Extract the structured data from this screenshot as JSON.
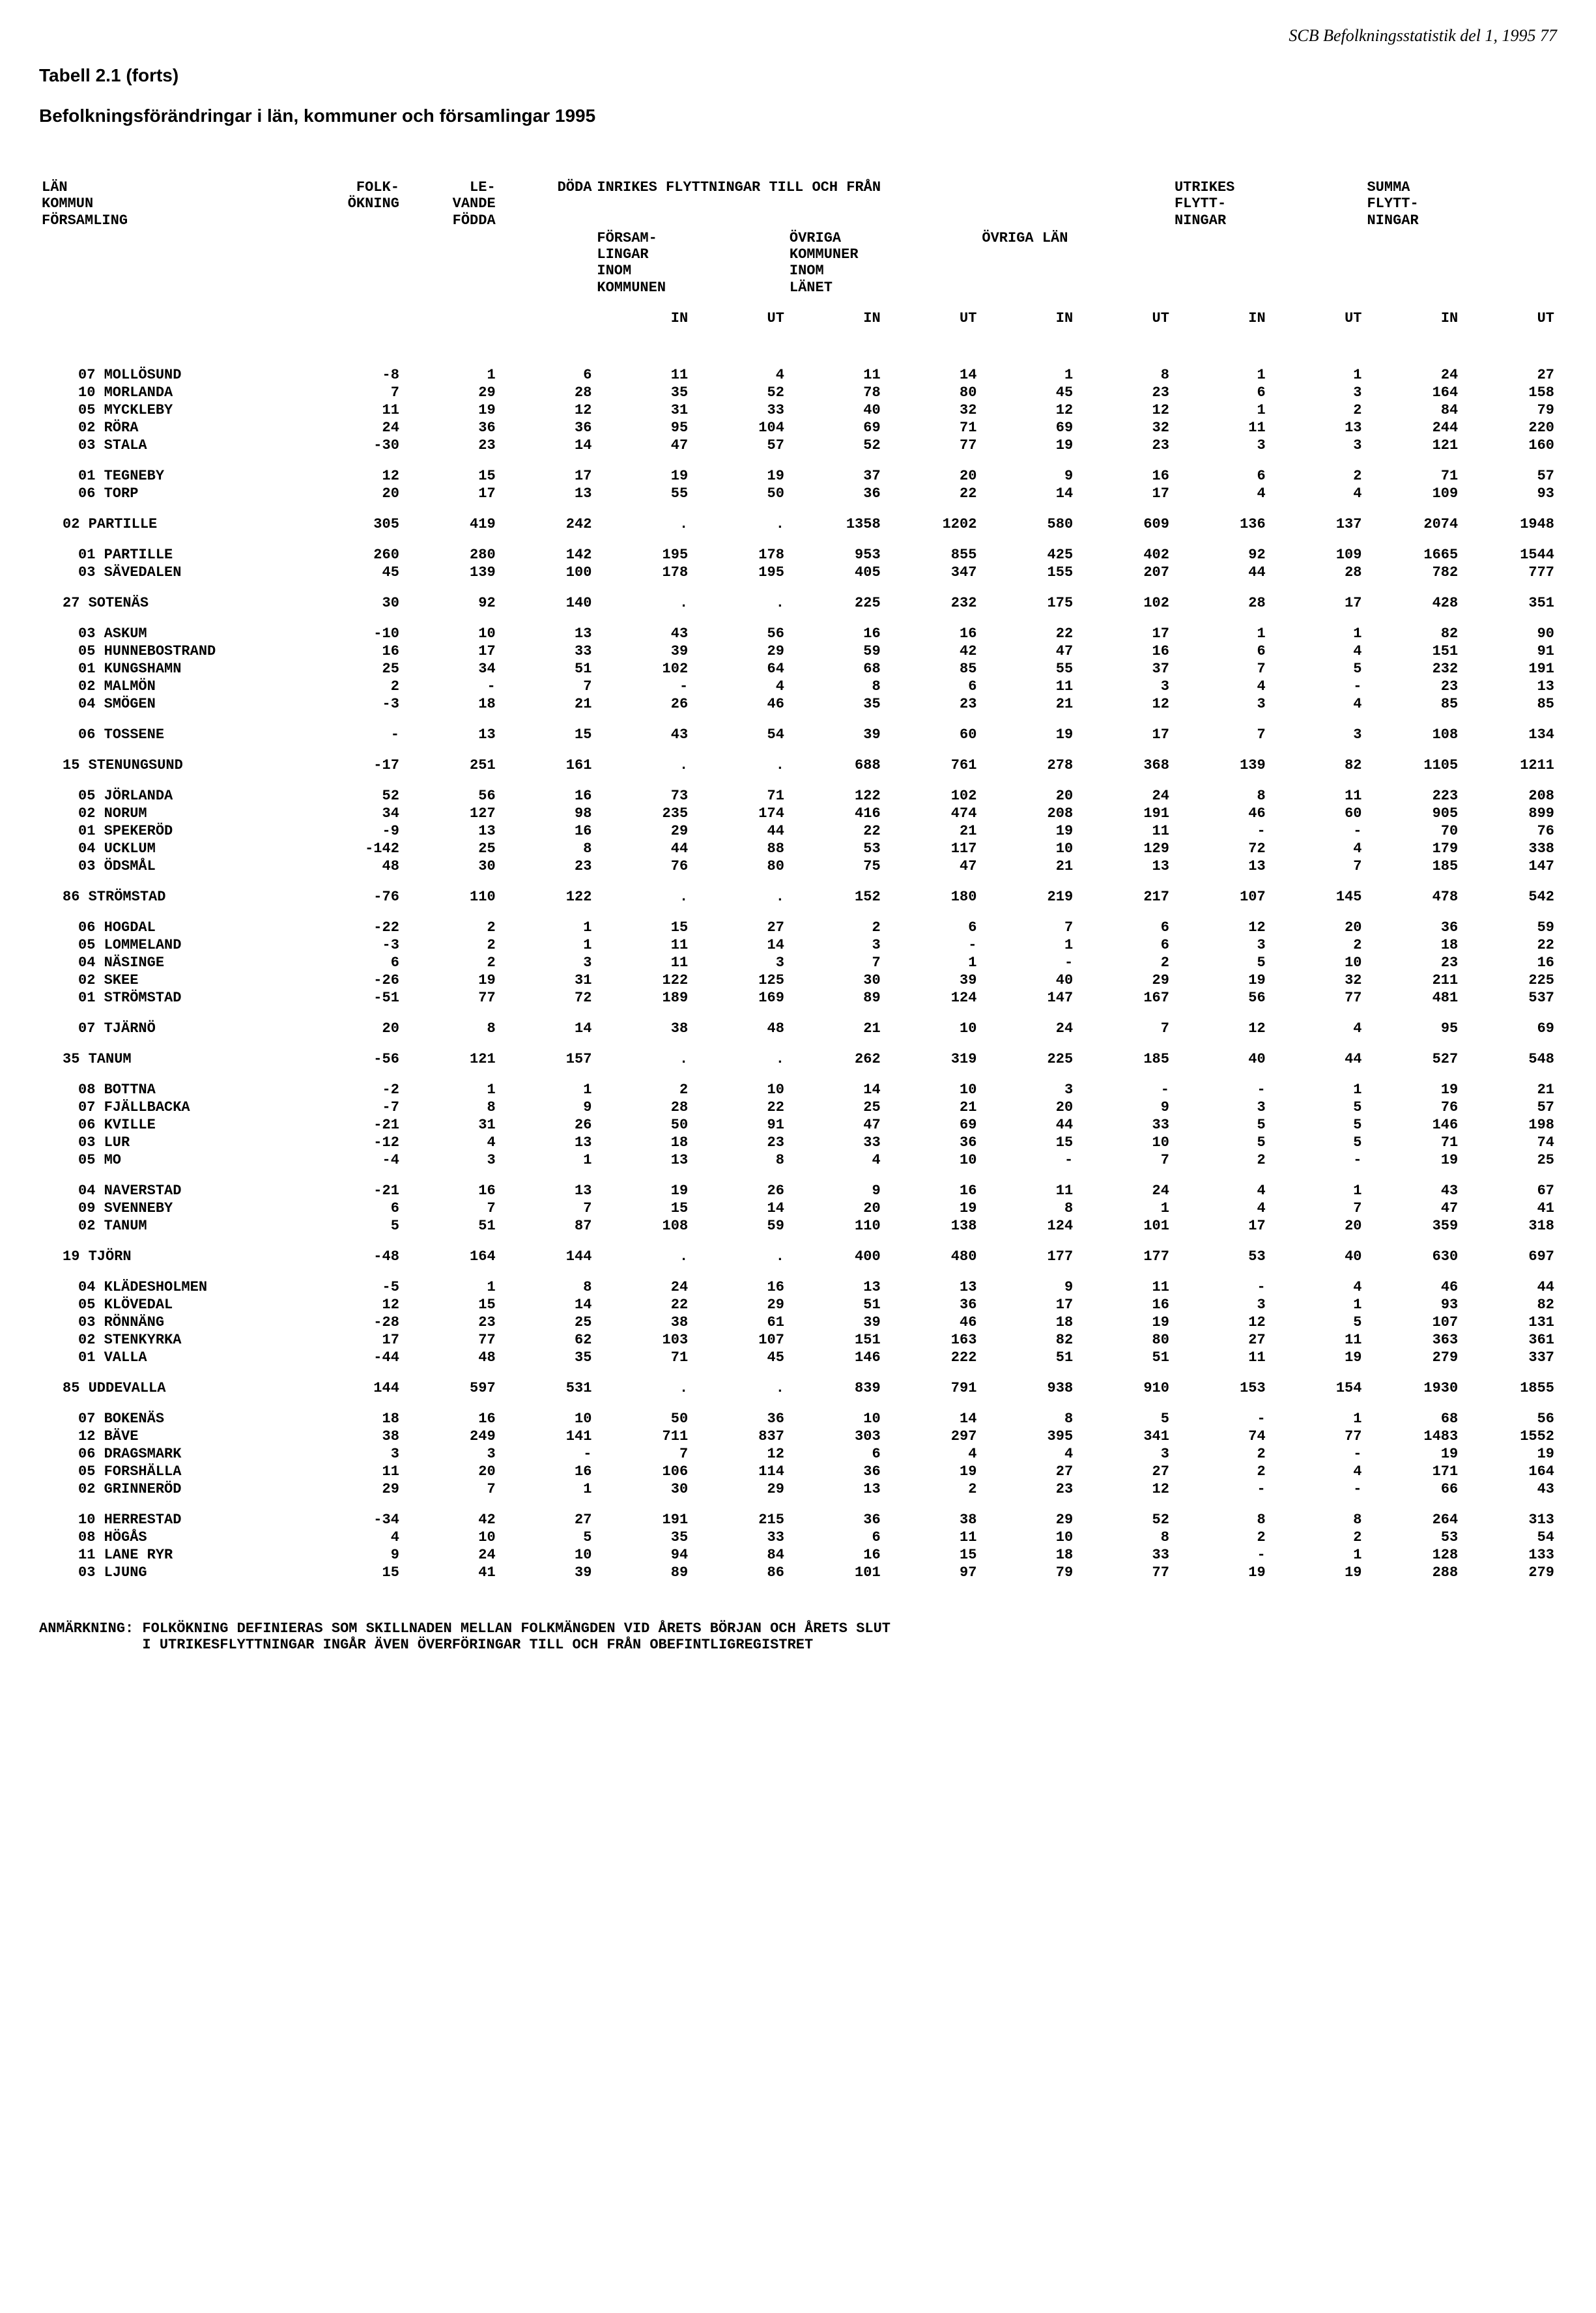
{
  "page_header": "SCB Befolkningsstatistik del 1, 1995    77",
  "table_label": "Tabell 2.1 (forts)",
  "subtitle": "Befolkningsförändringar i län, kommuner och församlingar 1995",
  "headers": {
    "c0": "LÄN\nKOMMUN\nFÖRSAMLING",
    "c1": "FOLK-\nÖKNING",
    "c2": "LE-\nVANDE\nFÖDDA",
    "c3": "DÖDA",
    "group1": "INRIKES FLYTTNINGAR TILL OCH FRÅN",
    "g1a": "FÖRSAM-\nLINGAR\nINOM\nKOMMUNEN",
    "g1b": "ÖVRIGA\nKOMMUNER\nINOM\nLÄNET",
    "g1c": "ÖVRIGA LÄN",
    "c_utrikes": "UTRIKES\nFLYTT-\nNINGAR",
    "c_summa": "SUMMA\nFLYTT-\nNINGAR",
    "in": "IN",
    "ut": "UT"
  },
  "footnote": "ANMÄRKNING: FOLKÖKNING DEFINIERAS SOM SKILLNADEN MELLAN FOLKMÄNGDEN VID ÅRETS BÖRJAN OCH ÅRETS SLUT\n            I UTRIKESFLYTTNINGAR INGÅR ÄVEN ÖVERFÖRINGAR TILL OCH FRÅN OBEFINTLIGREGISTRET",
  "rows": [
    {
      "g": "sp"
    },
    {
      "i": 2,
      "n": "07 MOLLÖSUND",
      "v": [
        "-8",
        "1",
        "6",
        "11",
        "4",
        "11",
        "14",
        "1",
        "8",
        "1",
        "1",
        "24",
        "27"
      ]
    },
    {
      "i": 2,
      "n": "10 MORLANDA",
      "v": [
        "7",
        "29",
        "28",
        "35",
        "52",
        "78",
        "80",
        "45",
        "23",
        "6",
        "3",
        "164",
        "158"
      ]
    },
    {
      "i": 2,
      "n": "05 MYCKLEBY",
      "v": [
        "11",
        "19",
        "12",
        "31",
        "33",
        "40",
        "32",
        "12",
        "12",
        "1",
        "2",
        "84",
        "79"
      ]
    },
    {
      "i": 2,
      "n": "02 RÖRA",
      "v": [
        "24",
        "36",
        "36",
        "95",
        "104",
        "69",
        "71",
        "69",
        "32",
        "11",
        "13",
        "244",
        "220"
      ]
    },
    {
      "i": 2,
      "n": "03 STALA",
      "v": [
        "-30",
        "23",
        "14",
        "47",
        "57",
        "52",
        "77",
        "19",
        "23",
        "3",
        "3",
        "121",
        "160"
      ]
    },
    {
      "g": "sp"
    },
    {
      "i": 2,
      "n": "01 TEGNEBY",
      "v": [
        "12",
        "15",
        "17",
        "19",
        "19",
        "37",
        "20",
        "9",
        "16",
        "6",
        "2",
        "71",
        "57"
      ]
    },
    {
      "i": 2,
      "n": "06 TORP",
      "v": [
        "20",
        "17",
        "13",
        "55",
        "50",
        "36",
        "22",
        "14",
        "17",
        "4",
        "4",
        "109",
        "93"
      ]
    },
    {
      "g": "sp"
    },
    {
      "i": 1,
      "n": "02 PARTILLE",
      "v": [
        "305",
        "419",
        "242",
        ".",
        ".",
        "1358",
        "1202",
        "580",
        "609",
        "136",
        "137",
        "2074",
        "1948"
      ]
    },
    {
      "g": "sp"
    },
    {
      "i": 2,
      "n": "01 PARTILLE",
      "v": [
        "260",
        "280",
        "142",
        "195",
        "178",
        "953",
        "855",
        "425",
        "402",
        "92",
        "109",
        "1665",
        "1544"
      ]
    },
    {
      "i": 2,
      "n": "03 SÄVEDALEN",
      "v": [
        "45",
        "139",
        "100",
        "178",
        "195",
        "405",
        "347",
        "155",
        "207",
        "44",
        "28",
        "782",
        "777"
      ]
    },
    {
      "g": "sp"
    },
    {
      "i": 1,
      "n": "27 SOTENÄS",
      "v": [
        "30",
        "92",
        "140",
        ".",
        ".",
        "225",
        "232",
        "175",
        "102",
        "28",
        "17",
        "428",
        "351"
      ]
    },
    {
      "g": "sp"
    },
    {
      "i": 2,
      "n": "03 ASKUM",
      "v": [
        "-10",
        "10",
        "13",
        "43",
        "56",
        "16",
        "16",
        "22",
        "17",
        "1",
        "1",
        "82",
        "90"
      ]
    },
    {
      "i": 2,
      "n": "05 HUNNEBOSTRAND",
      "v": [
        "16",
        "17",
        "33",
        "39",
        "29",
        "59",
        "42",
        "47",
        "16",
        "6",
        "4",
        "151",
        "91"
      ]
    },
    {
      "i": 2,
      "n": "01 KUNGSHAMN",
      "v": [
        "25",
        "34",
        "51",
        "102",
        "64",
        "68",
        "85",
        "55",
        "37",
        "7",
        "5",
        "232",
        "191"
      ]
    },
    {
      "i": 2,
      "n": "02 MALMÖN",
      "v": [
        "2",
        "-",
        "7",
        "-",
        "4",
        "8",
        "6",
        "11",
        "3",
        "4",
        "-",
        "23",
        "13"
      ]
    },
    {
      "i": 2,
      "n": "04 SMÖGEN",
      "v": [
        "-3",
        "18",
        "21",
        "26",
        "46",
        "35",
        "23",
        "21",
        "12",
        "3",
        "4",
        "85",
        "85"
      ]
    },
    {
      "g": "sp"
    },
    {
      "i": 2,
      "n": "06 TOSSENE",
      "v": [
        "-",
        "13",
        "15",
        "43",
        "54",
        "39",
        "60",
        "19",
        "17",
        "7",
        "3",
        "108",
        "134"
      ]
    },
    {
      "g": "sp"
    },
    {
      "i": 1,
      "n": "15 STENUNGSUND",
      "v": [
        "-17",
        "251",
        "161",
        ".",
        ".",
        "688",
        "761",
        "278",
        "368",
        "139",
        "82",
        "1105",
        "1211"
      ]
    },
    {
      "g": "sp"
    },
    {
      "i": 2,
      "n": "05 JÖRLANDA",
      "v": [
        "52",
        "56",
        "16",
        "73",
        "71",
        "122",
        "102",
        "20",
        "24",
        "8",
        "11",
        "223",
        "208"
      ]
    },
    {
      "i": 2,
      "n": "02 NORUM",
      "v": [
        "34",
        "127",
        "98",
        "235",
        "174",
        "416",
        "474",
        "208",
        "191",
        "46",
        "60",
        "905",
        "899"
      ]
    },
    {
      "i": 2,
      "n": "01 SPEKERÖD",
      "v": [
        "-9",
        "13",
        "16",
        "29",
        "44",
        "22",
        "21",
        "19",
        "11",
        "-",
        "-",
        "70",
        "76"
      ]
    },
    {
      "i": 2,
      "n": "04 UCKLUM",
      "v": [
        "-142",
        "25",
        "8",
        "44",
        "88",
        "53",
        "117",
        "10",
        "129",
        "72",
        "4",
        "179",
        "338"
      ]
    },
    {
      "i": 2,
      "n": "03 ÖDSMÅL",
      "v": [
        "48",
        "30",
        "23",
        "76",
        "80",
        "75",
        "47",
        "21",
        "13",
        "13",
        "7",
        "185",
        "147"
      ]
    },
    {
      "g": "sp"
    },
    {
      "i": 1,
      "n": "86 STRÖMSTAD",
      "v": [
        "-76",
        "110",
        "122",
        ".",
        ".",
        "152",
        "180",
        "219",
        "217",
        "107",
        "145",
        "478",
        "542"
      ]
    },
    {
      "g": "sp"
    },
    {
      "i": 2,
      "n": "06 HOGDAL",
      "v": [
        "-22",
        "2",
        "1",
        "15",
        "27",
        "2",
        "6",
        "7",
        "6",
        "12",
        "20",
        "36",
        "59"
      ]
    },
    {
      "i": 2,
      "n": "05 LOMMELAND",
      "v": [
        "-3",
        "2",
        "1",
        "11",
        "14",
        "3",
        "-",
        "1",
        "6",
        "3",
        "2",
        "18",
        "22"
      ]
    },
    {
      "i": 2,
      "n": "04 NÄSINGE",
      "v": [
        "6",
        "2",
        "3",
        "11",
        "3",
        "7",
        "1",
        "-",
        "2",
        "5",
        "10",
        "23",
        "16"
      ]
    },
    {
      "i": 2,
      "n": "02 SKEE",
      "v": [
        "-26",
        "19",
        "31",
        "122",
        "125",
        "30",
        "39",
        "40",
        "29",
        "19",
        "32",
        "211",
        "225"
      ]
    },
    {
      "i": 2,
      "n": "01 STRÖMSTAD",
      "v": [
        "-51",
        "77",
        "72",
        "189",
        "169",
        "89",
        "124",
        "147",
        "167",
        "56",
        "77",
        "481",
        "537"
      ]
    },
    {
      "g": "sp"
    },
    {
      "i": 2,
      "n": "07 TJÄRNÖ",
      "v": [
        "20",
        "8",
        "14",
        "38",
        "48",
        "21",
        "10",
        "24",
        "7",
        "12",
        "4",
        "95",
        "69"
      ]
    },
    {
      "g": "sp"
    },
    {
      "i": 1,
      "n": "35 TANUM",
      "v": [
        "-56",
        "121",
        "157",
        ".",
        ".",
        "262",
        "319",
        "225",
        "185",
        "40",
        "44",
        "527",
        "548"
      ]
    },
    {
      "g": "sp"
    },
    {
      "i": 2,
      "n": "08 BOTTNA",
      "v": [
        "-2",
        "1",
        "1",
        "2",
        "10",
        "14",
        "10",
        "3",
        "-",
        "-",
        "1",
        "19",
        "21"
      ]
    },
    {
      "i": 2,
      "n": "07 FJÄLLBACKA",
      "v": [
        "-7",
        "8",
        "9",
        "28",
        "22",
        "25",
        "21",
        "20",
        "9",
        "3",
        "5",
        "76",
        "57"
      ]
    },
    {
      "i": 2,
      "n": "06 KVILLE",
      "v": [
        "-21",
        "31",
        "26",
        "50",
        "91",
        "47",
        "69",
        "44",
        "33",
        "5",
        "5",
        "146",
        "198"
      ]
    },
    {
      "i": 2,
      "n": "03 LUR",
      "v": [
        "-12",
        "4",
        "13",
        "18",
        "23",
        "33",
        "36",
        "15",
        "10",
        "5",
        "5",
        "71",
        "74"
      ]
    },
    {
      "i": 2,
      "n": "05 MO",
      "v": [
        "-4",
        "3",
        "1",
        "13",
        "8",
        "4",
        "10",
        "-",
        "7",
        "2",
        "-",
        "19",
        "25"
      ]
    },
    {
      "g": "sp"
    },
    {
      "i": 2,
      "n": "04 NAVERSTAD",
      "v": [
        "-21",
        "16",
        "13",
        "19",
        "26",
        "9",
        "16",
        "11",
        "24",
        "4",
        "1",
        "43",
        "67"
      ]
    },
    {
      "i": 2,
      "n": "09 SVENNEBY",
      "v": [
        "6",
        "7",
        "7",
        "15",
        "14",
        "20",
        "19",
        "8",
        "1",
        "4",
        "7",
        "47",
        "41"
      ]
    },
    {
      "i": 2,
      "n": "02 TANUM",
      "v": [
        "5",
        "51",
        "87",
        "108",
        "59",
        "110",
        "138",
        "124",
        "101",
        "17",
        "20",
        "359",
        "318"
      ]
    },
    {
      "g": "sp"
    },
    {
      "i": 1,
      "n": "19 TJÖRN",
      "v": [
        "-48",
        "164",
        "144",
        ".",
        ".",
        "400",
        "480",
        "177",
        "177",
        "53",
        "40",
        "630",
        "697"
      ]
    },
    {
      "g": "sp"
    },
    {
      "i": 2,
      "n": "04 KLÄDESHOLMEN",
      "v": [
        "-5",
        "1",
        "8",
        "24",
        "16",
        "13",
        "13",
        "9",
        "11",
        "-",
        "4",
        "46",
        "44"
      ]
    },
    {
      "i": 2,
      "n": "05 KLÖVEDAL",
      "v": [
        "12",
        "15",
        "14",
        "22",
        "29",
        "51",
        "36",
        "17",
        "16",
        "3",
        "1",
        "93",
        "82"
      ]
    },
    {
      "i": 2,
      "n": "03 RÖNNÄNG",
      "v": [
        "-28",
        "23",
        "25",
        "38",
        "61",
        "39",
        "46",
        "18",
        "19",
        "12",
        "5",
        "107",
        "131"
      ]
    },
    {
      "i": 2,
      "n": "02 STENKYRKA",
      "v": [
        "17",
        "77",
        "62",
        "103",
        "107",
        "151",
        "163",
        "82",
        "80",
        "27",
        "11",
        "363",
        "361"
      ]
    },
    {
      "i": 2,
      "n": "01 VALLA",
      "v": [
        "-44",
        "48",
        "35",
        "71",
        "45",
        "146",
        "222",
        "51",
        "51",
        "11",
        "19",
        "279",
        "337"
      ]
    },
    {
      "g": "sp"
    },
    {
      "i": 1,
      "n": "85 UDDEVALLA",
      "v": [
        "144",
        "597",
        "531",
        ".",
        ".",
        "839",
        "791",
        "938",
        "910",
        "153",
        "154",
        "1930",
        "1855"
      ]
    },
    {
      "g": "sp"
    },
    {
      "i": 2,
      "n": "07 BOKENÄS",
      "v": [
        "18",
        "16",
        "10",
        "50",
        "36",
        "10",
        "14",
        "8",
        "5",
        "-",
        "1",
        "68",
        "56"
      ]
    },
    {
      "i": 2,
      "n": "12 BÄVE",
      "v": [
        "38",
        "249",
        "141",
        "711",
        "837",
        "303",
        "297",
        "395",
        "341",
        "74",
        "77",
        "1483",
        "1552"
      ]
    },
    {
      "i": 2,
      "n": "06 DRAGSMARK",
      "v": [
        "3",
        "3",
        "-",
        "7",
        "12",
        "6",
        "4",
        "4",
        "3",
        "2",
        "-",
        "19",
        "19"
      ]
    },
    {
      "i": 2,
      "n": "05 FORSHÄLLA",
      "v": [
        "11",
        "20",
        "16",
        "106",
        "114",
        "36",
        "19",
        "27",
        "27",
        "2",
        "4",
        "171",
        "164"
      ]
    },
    {
      "i": 2,
      "n": "02 GRINNERÖD",
      "v": [
        "29",
        "7",
        "1",
        "30",
        "29",
        "13",
        "2",
        "23",
        "12",
        "-",
        "-",
        "66",
        "43"
      ]
    },
    {
      "g": "sp"
    },
    {
      "i": 2,
      "n": "10 HERRESTAD",
      "v": [
        "-34",
        "42",
        "27",
        "191",
        "215",
        "36",
        "38",
        "29",
        "52",
        "8",
        "8",
        "264",
        "313"
      ]
    },
    {
      "i": 2,
      "n": "08 HÖGÅS",
      "v": [
        "4",
        "10",
        "5",
        "35",
        "33",
        "6",
        "11",
        "10",
        "8",
        "2",
        "2",
        "53",
        "54"
      ]
    },
    {
      "i": 2,
      "n": "11 LANE RYR",
      "v": [
        "9",
        "24",
        "10",
        "94",
        "84",
        "16",
        "15",
        "18",
        "33",
        "-",
        "1",
        "128",
        "133"
      ]
    },
    {
      "i": 2,
      "n": "03 LJUNG",
      "v": [
        "15",
        "41",
        "39",
        "89",
        "86",
        "101",
        "97",
        "79",
        "77",
        "19",
        "19",
        "288",
        "279"
      ]
    }
  ]
}
